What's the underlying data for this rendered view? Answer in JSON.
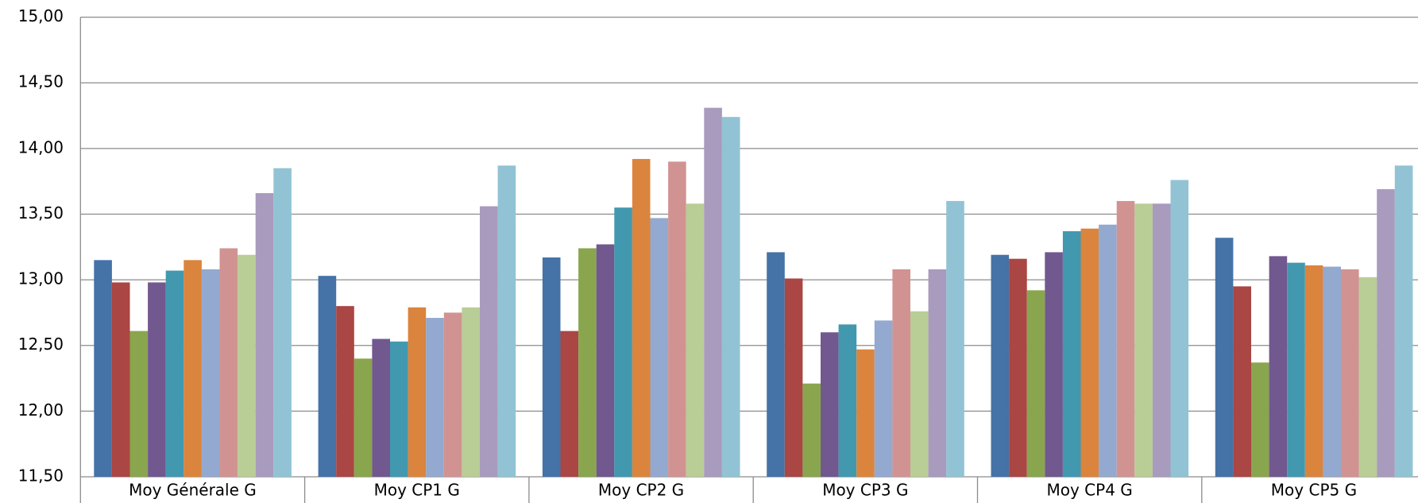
{
  "chart_data": {
    "type": "bar",
    "categories": [
      "Moy Générale G",
      "Moy CP1 G",
      "Moy CP2 G",
      "Moy CP3 G",
      "Moy CP4 G",
      "Moy CP5 G"
    ],
    "series": [
      {
        "color": "#4572a7",
        "values": [
          13.15,
          13.03,
          13.17,
          13.21,
          13.19,
          13.32
        ]
      },
      {
        "color": "#aa4643",
        "values": [
          12.98,
          12.8,
          12.61,
          13.01,
          13.16,
          12.95
        ]
      },
      {
        "color": "#89a54e",
        "values": [
          12.61,
          12.4,
          13.24,
          12.21,
          12.92,
          12.37
        ]
      },
      {
        "color": "#71588f",
        "values": [
          12.98,
          12.55,
          13.27,
          12.6,
          13.21,
          13.18
        ]
      },
      {
        "color": "#4198af",
        "values": [
          13.07,
          12.53,
          13.55,
          12.66,
          13.37,
          13.13
        ]
      },
      {
        "color": "#db843d",
        "values": [
          13.15,
          12.79,
          13.92,
          12.47,
          13.39,
          13.11
        ]
      },
      {
        "color": "#93a9cf",
        "values": [
          13.08,
          12.71,
          13.47,
          12.69,
          13.42,
          13.1
        ]
      },
      {
        "color": "#d19392",
        "values": [
          13.24,
          12.75,
          13.9,
          13.08,
          13.6,
          13.08
        ]
      },
      {
        "color": "#b9cd96",
        "values": [
          13.19,
          12.79,
          13.58,
          12.76,
          13.58,
          13.02
        ]
      },
      {
        "color": "#a99bbd",
        "values": [
          13.66,
          13.56,
          14.31,
          13.08,
          13.58,
          13.69
        ]
      },
      {
        "color": "#91c3d5",
        "values": [
          13.85,
          13.87,
          14.24,
          13.6,
          13.76,
          13.87
        ]
      }
    ],
    "ylim": [
      11.5,
      15
    ],
    "yticks": [
      {
        "value": 11.5,
        "label": "11,50"
      },
      {
        "value": 12,
        "label": "12,00"
      },
      {
        "value": 12.5,
        "label": "12,50"
      },
      {
        "value": 13,
        "label": "13,00"
      },
      {
        "value": 13.5,
        "label": "13,50"
      },
      {
        "value": 14,
        "label": "14,00"
      },
      {
        "value": 14.5,
        "label": "14,50"
      },
      {
        "value": 15,
        "label": "15,00"
      }
    ],
    "grid": true
  }
}
